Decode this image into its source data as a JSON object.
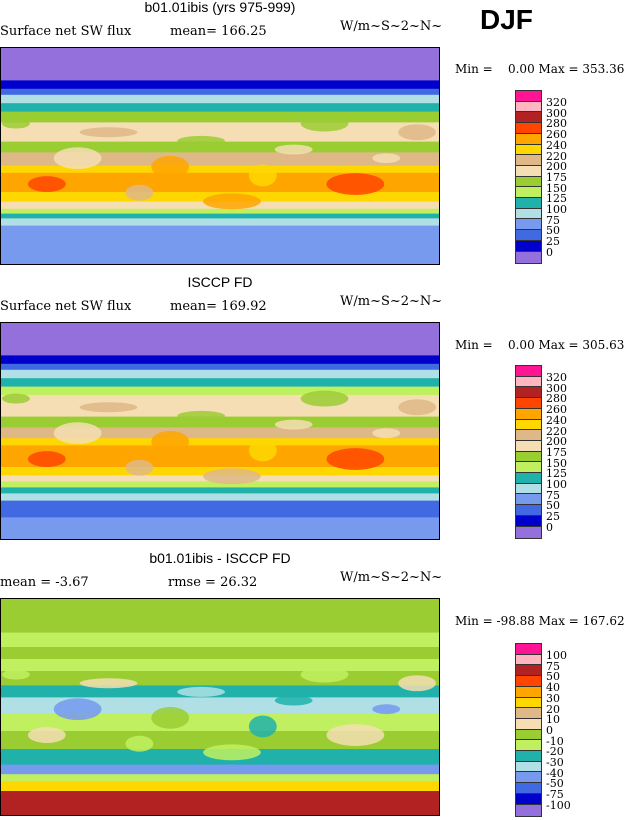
{
  "season": "DJF",
  "chart_data": [
    {
      "type": "heatmap",
      "title": "b01.01ibis (yrs 975-999)",
      "subtitle": "Surface net SW flux",
      "stat_text": "mean= 166.25",
      "units": "W/m~S~2~N~",
      "min_max": "Min =    0.00 Max = 353.36",
      "levels": [
        "320",
        "300",
        "280",
        "260",
        "240",
        "220",
        "200",
        "175",
        "150",
        "125",
        "100",
        "75",
        "50",
        "25",
        "0"
      ],
      "zonal_bands": [
        [
          90,
          63,
          14
        ],
        [
          63,
          56,
          13
        ],
        [
          56,
          51,
          12
        ],
        [
          51,
          44,
          10
        ],
        [
          44,
          37,
          9
        ],
        [
          37,
          28,
          7
        ],
        [
          28,
          12,
          6
        ],
        [
          12,
          3,
          7
        ],
        [
          3,
          -8,
          5
        ],
        [
          -8,
          -14,
          4
        ],
        [
          -14,
          -30,
          3
        ],
        [
          -30,
          -38,
          4
        ],
        [
          -38,
          -44,
          6
        ],
        [
          -44,
          -48,
          8
        ],
        [
          -48,
          -52,
          9
        ],
        [
          -52,
          -58,
          10
        ],
        [
          -58,
          -90,
          11
        ]
      ]
    },
    {
      "type": "heatmap",
      "title": "ISCCP FD",
      "subtitle": "Surface net SW flux",
      "stat_text": "mean= 169.92",
      "units": "W/m~S~2~N~",
      "min_max": "Min =    0.00 Max = 305.63",
      "levels": [
        "320",
        "300",
        "280",
        "260",
        "240",
        "220",
        "200",
        "175",
        "150",
        "125",
        "100",
        "75",
        "50",
        "25",
        "0"
      ],
      "zonal_bands": [
        [
          90,
          63,
          14
        ],
        [
          63,
          56,
          13
        ],
        [
          56,
          51,
          12
        ],
        [
          51,
          44,
          10
        ],
        [
          44,
          37,
          9
        ],
        [
          37,
          30,
          8
        ],
        [
          30,
          12,
          6
        ],
        [
          12,
          3,
          7
        ],
        [
          3,
          -6,
          5
        ],
        [
          -6,
          -12,
          4
        ],
        [
          -12,
          -30,
          3
        ],
        [
          -30,
          -37,
          4
        ],
        [
          -37,
          -42,
          6
        ],
        [
          -42,
          -47,
          8
        ],
        [
          -47,
          -52,
          9
        ],
        [
          -52,
          -58,
          10
        ],
        [
          -58,
          -72,
          12
        ],
        [
          -72,
          -90,
          11
        ]
      ]
    },
    {
      "type": "heatmap",
      "title": "b01.01ibis - ISCCP FD",
      "subtitle": "mean =  -3.67",
      "stat_text": "rmse =  26.32",
      "units": "W/m~S~2~N~",
      "min_max": "Min = -98.88 Max = 167.62",
      "levels": [
        "100",
        "75",
        "50",
        "40",
        "30",
        "20",
        "10",
        "0",
        "-10",
        "-20",
        "-30",
        "-40",
        "-50",
        "-75",
        "-100"
      ],
      "zonal_bands": [
        [
          90,
          62,
          7
        ],
        [
          62,
          50,
          8
        ],
        [
          50,
          40,
          7
        ],
        [
          40,
          30,
          8
        ],
        [
          30,
          18,
          7
        ],
        [
          18,
          8,
          9
        ],
        [
          8,
          -5,
          10
        ],
        [
          -5,
          -20,
          8
        ],
        [
          -20,
          -35,
          7
        ],
        [
          -35,
          -48,
          9
        ],
        [
          -48,
          -56,
          11
        ],
        [
          -56,
          -62,
          8
        ],
        [
          -62,
          -70,
          4
        ],
        [
          -70,
          -90,
          1
        ]
      ]
    }
  ],
  "colors": [
    "#ff1493",
    "#ffb6c1",
    "#b22222",
    "#ff4500",
    "#ffa500",
    "#ffd700",
    "#deb887",
    "#f5deb3",
    "#9acd32",
    "#c0f060",
    "#20b2aa",
    "#b0e0e6",
    "#7799ee",
    "#4169e1",
    "#0000cd",
    "#9370db"
  ]
}
